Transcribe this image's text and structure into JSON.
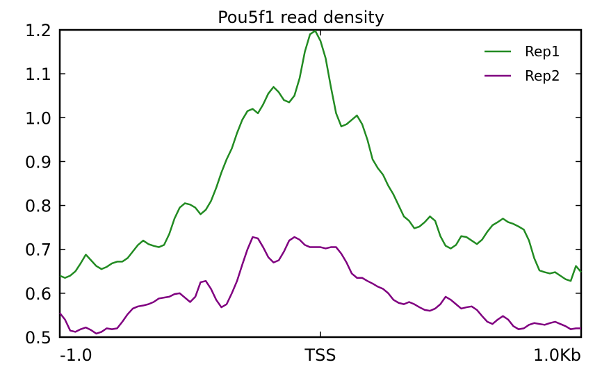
{
  "chart_data": {
    "type": "line",
    "title": "Pou5f1 read density",
    "xlabel": "",
    "ylabel": "",
    "xlim": [
      -1.0,
      1.0
    ],
    "ylim": [
      0.5,
      1.2
    ],
    "x_ticks": [
      {
        "value": -1.0,
        "label": "-1.0"
      },
      {
        "value": 0.0,
        "label": "TSS"
      },
      {
        "value": 1.0,
        "label": "1.0Kb"
      }
    ],
    "y_ticks": [
      {
        "value": 0.5,
        "label": "0.5"
      },
      {
        "value": 0.6,
        "label": "0.6"
      },
      {
        "value": 0.7,
        "label": "0.7"
      },
      {
        "value": 0.8,
        "label": "0.8"
      },
      {
        "value": 0.9,
        "label": "0.9"
      },
      {
        "value": 1.0,
        "label": "1.0"
      },
      {
        "value": 1.1,
        "label": "1.1"
      },
      {
        "value": 1.2,
        "label": "1.2"
      }
    ],
    "grid": false,
    "legend_position": "top-right",
    "series": [
      {
        "name": "Rep1",
        "color": "#228b22",
        "points": [
          [
            -1.0,
            0.64
          ],
          [
            -0.98,
            0.635
          ],
          [
            -0.96,
            0.64
          ],
          [
            -0.94,
            0.65
          ],
          [
            -0.92,
            0.668
          ],
          [
            -0.9,
            0.688
          ],
          [
            -0.88,
            0.675
          ],
          [
            -0.86,
            0.662
          ],
          [
            -0.84,
            0.655
          ],
          [
            -0.82,
            0.66
          ],
          [
            -0.8,
            0.668
          ],
          [
            -0.78,
            0.672
          ],
          [
            -0.76,
            0.672
          ],
          [
            -0.74,
            0.68
          ],
          [
            -0.72,
            0.695
          ],
          [
            -0.7,
            0.71
          ],
          [
            -0.68,
            0.72
          ],
          [
            -0.66,
            0.712
          ],
          [
            -0.64,
            0.708
          ],
          [
            -0.62,
            0.705
          ],
          [
            -0.6,
            0.71
          ],
          [
            -0.58,
            0.735
          ],
          [
            -0.56,
            0.77
          ],
          [
            -0.54,
            0.795
          ],
          [
            -0.52,
            0.805
          ],
          [
            -0.5,
            0.802
          ],
          [
            -0.48,
            0.795
          ],
          [
            -0.46,
            0.78
          ],
          [
            -0.44,
            0.79
          ],
          [
            -0.42,
            0.81
          ],
          [
            -0.4,
            0.84
          ],
          [
            -0.38,
            0.875
          ],
          [
            -0.36,
            0.905
          ],
          [
            -0.34,
            0.93
          ],
          [
            -0.32,
            0.965
          ],
          [
            -0.3,
            0.995
          ],
          [
            -0.28,
            1.015
          ],
          [
            -0.26,
            1.02
          ],
          [
            -0.24,
            1.01
          ],
          [
            -0.22,
            1.03
          ],
          [
            -0.2,
            1.055
          ],
          [
            -0.18,
            1.07
          ],
          [
            -0.16,
            1.058
          ],
          [
            -0.14,
            1.04
          ],
          [
            -0.12,
            1.035
          ],
          [
            -0.1,
            1.05
          ],
          [
            -0.08,
            1.09
          ],
          [
            -0.06,
            1.15
          ],
          [
            -0.04,
            1.19
          ],
          [
            -0.02,
            1.198
          ],
          [
            0.0,
            1.175
          ],
          [
            0.02,
            1.135
          ],
          [
            0.04,
            1.07
          ],
          [
            0.06,
            1.01
          ],
          [
            0.08,
            0.98
          ],
          [
            0.1,
            0.985
          ],
          [
            0.12,
            0.995
          ],
          [
            0.14,
            1.005
          ],
          [
            0.16,
            0.985
          ],
          [
            0.18,
            0.95
          ],
          [
            0.2,
            0.905
          ],
          [
            0.22,
            0.885
          ],
          [
            0.24,
            0.87
          ],
          [
            0.26,
            0.845
          ],
          [
            0.28,
            0.825
          ],
          [
            0.3,
            0.8
          ],
          [
            0.32,
            0.775
          ],
          [
            0.34,
            0.765
          ],
          [
            0.36,
            0.748
          ],
          [
            0.38,
            0.752
          ],
          [
            0.4,
            0.762
          ],
          [
            0.42,
            0.775
          ],
          [
            0.44,
            0.765
          ],
          [
            0.46,
            0.73
          ],
          [
            0.48,
            0.708
          ],
          [
            0.5,
            0.702
          ],
          [
            0.52,
            0.71
          ],
          [
            0.54,
            0.73
          ],
          [
            0.56,
            0.728
          ],
          [
            0.58,
            0.72
          ],
          [
            0.6,
            0.712
          ],
          [
            0.62,
            0.722
          ],
          [
            0.64,
            0.74
          ],
          [
            0.66,
            0.755
          ],
          [
            0.68,
            0.762
          ],
          [
            0.7,
            0.77
          ],
          [
            0.72,
            0.762
          ],
          [
            0.74,
            0.758
          ],
          [
            0.76,
            0.752
          ],
          [
            0.78,
            0.745
          ],
          [
            0.8,
            0.72
          ],
          [
            0.82,
            0.68
          ],
          [
            0.84,
            0.652
          ],
          [
            0.86,
            0.648
          ],
          [
            0.88,
            0.645
          ],
          [
            0.9,
            0.648
          ],
          [
            0.92,
            0.64
          ],
          [
            0.94,
            0.632
          ],
          [
            0.96,
            0.628
          ],
          [
            0.98,
            0.662
          ],
          [
            1.0,
            0.648
          ]
        ]
      },
      {
        "name": "Rep2",
        "color": "#800080",
        "points": [
          [
            -1.0,
            0.555
          ],
          [
            -0.98,
            0.54
          ],
          [
            -0.96,
            0.515
          ],
          [
            -0.94,
            0.512
          ],
          [
            -0.92,
            0.518
          ],
          [
            -0.9,
            0.522
          ],
          [
            -0.88,
            0.516
          ],
          [
            -0.86,
            0.508
          ],
          [
            -0.84,
            0.512
          ],
          [
            -0.82,
            0.52
          ],
          [
            -0.8,
            0.518
          ],
          [
            -0.78,
            0.52
          ],
          [
            -0.76,
            0.535
          ],
          [
            -0.74,
            0.552
          ],
          [
            -0.72,
            0.565
          ],
          [
            -0.7,
            0.57
          ],
          [
            -0.68,
            0.572
          ],
          [
            -0.66,
            0.575
          ],
          [
            -0.64,
            0.58
          ],
          [
            -0.62,
            0.588
          ],
          [
            -0.6,
            0.59
          ],
          [
            -0.58,
            0.592
          ],
          [
            -0.56,
            0.598
          ],
          [
            -0.54,
            0.6
          ],
          [
            -0.52,
            0.59
          ],
          [
            -0.5,
            0.58
          ],
          [
            -0.48,
            0.592
          ],
          [
            -0.46,
            0.625
          ],
          [
            -0.44,
            0.628
          ],
          [
            -0.42,
            0.61
          ],
          [
            -0.4,
            0.585
          ],
          [
            -0.38,
            0.568
          ],
          [
            -0.36,
            0.575
          ],
          [
            -0.34,
            0.6
          ],
          [
            -0.32,
            0.628
          ],
          [
            -0.3,
            0.665
          ],
          [
            -0.28,
            0.7
          ],
          [
            -0.26,
            0.728
          ],
          [
            -0.24,
            0.725
          ],
          [
            -0.22,
            0.705
          ],
          [
            -0.2,
            0.682
          ],
          [
            -0.18,
            0.67
          ],
          [
            -0.16,
            0.675
          ],
          [
            -0.14,
            0.695
          ],
          [
            -0.12,
            0.72
          ],
          [
            -0.1,
            0.728
          ],
          [
            -0.08,
            0.722
          ],
          [
            -0.06,
            0.71
          ],
          [
            -0.04,
            0.705
          ],
          [
            -0.02,
            0.705
          ],
          [
            0.0,
            0.705
          ],
          [
            0.02,
            0.702
          ],
          [
            0.04,
            0.705
          ],
          [
            0.06,
            0.705
          ],
          [
            0.08,
            0.69
          ],
          [
            0.1,
            0.67
          ],
          [
            0.12,
            0.645
          ],
          [
            0.14,
            0.635
          ],
          [
            0.16,
            0.635
          ],
          [
            0.18,
            0.628
          ],
          [
            0.2,
            0.622
          ],
          [
            0.22,
            0.615
          ],
          [
            0.24,
            0.61
          ],
          [
            0.26,
            0.6
          ],
          [
            0.28,
            0.585
          ],
          [
            0.3,
            0.578
          ],
          [
            0.32,
            0.575
          ],
          [
            0.34,
            0.58
          ],
          [
            0.36,
            0.575
          ],
          [
            0.38,
            0.568
          ],
          [
            0.4,
            0.562
          ],
          [
            0.42,
            0.56
          ],
          [
            0.44,
            0.565
          ],
          [
            0.46,
            0.575
          ],
          [
            0.48,
            0.592
          ],
          [
            0.5,
            0.585
          ],
          [
            0.52,
            0.575
          ],
          [
            0.54,
            0.565
          ],
          [
            0.56,
            0.568
          ],
          [
            0.58,
            0.57
          ],
          [
            0.6,
            0.562
          ],
          [
            0.62,
            0.548
          ],
          [
            0.64,
            0.535
          ],
          [
            0.66,
            0.53
          ],
          [
            0.68,
            0.54
          ],
          [
            0.7,
            0.548
          ],
          [
            0.72,
            0.54
          ],
          [
            0.74,
            0.525
          ],
          [
            0.76,
            0.518
          ],
          [
            0.78,
            0.52
          ],
          [
            0.8,
            0.528
          ],
          [
            0.82,
            0.532
          ],
          [
            0.84,
            0.53
          ],
          [
            0.86,
            0.528
          ],
          [
            0.88,
            0.532
          ],
          [
            0.9,
            0.535
          ],
          [
            0.92,
            0.53
          ],
          [
            0.94,
            0.525
          ],
          [
            0.96,
            0.518
          ],
          [
            0.98,
            0.52
          ],
          [
            1.0,
            0.52
          ]
        ]
      }
    ]
  }
}
